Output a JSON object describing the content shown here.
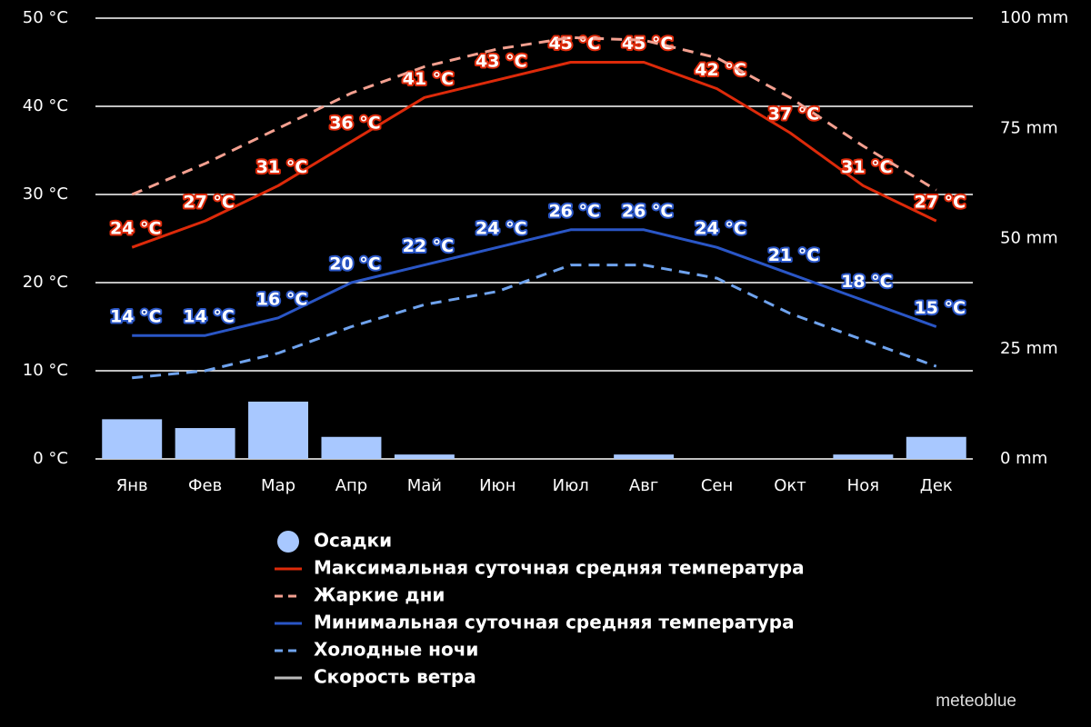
{
  "chart_data": {
    "type": "combo",
    "categories": [
      "Янв",
      "Фев",
      "Мар",
      "Апр",
      "Май",
      "Июн",
      "Июл",
      "Авг",
      "Сен",
      "Окт",
      "Ноя",
      "Дек"
    ],
    "ylim": [
      0,
      50
    ],
    "yticks": [
      {
        "value": 0,
        "label": "0 °C"
      },
      {
        "value": 10,
        "label": "10 °C"
      },
      {
        "value": 20,
        "label": "20 °C"
      },
      {
        "value": 30,
        "label": "30 °C"
      },
      {
        "value": 40,
        "label": "40 °C"
      },
      {
        "value": 50,
        "label": "50 °C"
      }
    ],
    "y2lim": [
      0,
      100
    ],
    "y2ticks": [
      {
        "value": 0,
        "label": "0 mm"
      },
      {
        "value": 25,
        "label": "25 mm"
      },
      {
        "value": 50,
        "label": "50 mm"
      },
      {
        "value": 75,
        "label": "75 mm"
      },
      {
        "value": 100,
        "label": "100 mm"
      }
    ],
    "grid": true,
    "series": [
      {
        "name": "Осадки",
        "type": "bar",
        "axis": "y2",
        "color": "#a8c8ff",
        "values": [
          9,
          7,
          13,
          5,
          1,
          0,
          0,
          1,
          0,
          0,
          1,
          5
        ]
      },
      {
        "name": "Максимальная суточная средняя температура",
        "type": "line",
        "style": "solid",
        "color": "#dd2a0a",
        "values": [
          24,
          27,
          31,
          36,
          41,
          43,
          45,
          45,
          42,
          37,
          31,
          27
        ],
        "value_labels": [
          "24 °C",
          "27 °C",
          "31 °C",
          "36 °C",
          "41 °C",
          "43 °C",
          "45 °C",
          "45 °C",
          "42 °C",
          "37 °C",
          "31 °C",
          "27 °C"
        ]
      },
      {
        "name": "Жаркие дни",
        "type": "line",
        "style": "dashed",
        "color": "#f4a090",
        "values": [
          30,
          33.5,
          37.5,
          41.5,
          44.5,
          46.5,
          47.8,
          47.5,
          45.5,
          41,
          35.5,
          30.5
        ]
      },
      {
        "name": "Минимальная суточная средняя температура",
        "type": "line",
        "style": "solid",
        "color": "#2a56c6",
        "values": [
          14,
          14,
          16,
          20,
          22,
          24,
          26,
          26,
          24,
          21,
          18,
          15
        ],
        "value_labels": [
          "14 °C",
          "14 °C",
          "16 °C",
          "20 °C",
          "22 °C",
          "24 °C",
          "26 °C",
          "26 °C",
          "24 °C",
          "21 °C",
          "18 °C",
          "15 °C"
        ]
      },
      {
        "name": "Холодные ночи",
        "type": "line",
        "style": "dashed",
        "color": "#6fa3ee",
        "values": [
          9.2,
          10,
          12,
          15,
          17.5,
          19,
          22,
          22,
          20.5,
          16.5,
          13.5,
          10.5
        ]
      },
      {
        "name": "Скорость ветра",
        "type": "line",
        "style": "solid",
        "color": "#bbbbbb",
        "values": [
          null,
          null,
          null,
          null,
          null,
          null,
          null,
          null,
          null,
          null,
          null,
          null
        ]
      }
    ],
    "watermark": "meteoblue"
  }
}
